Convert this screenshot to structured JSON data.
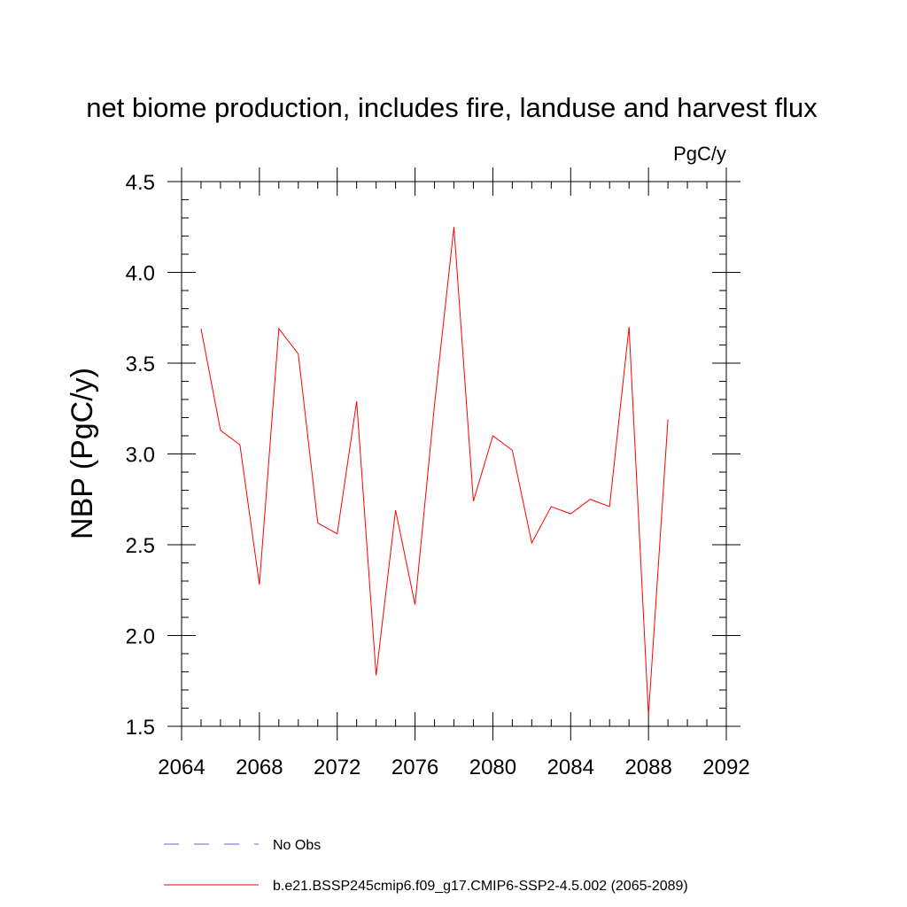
{
  "chart_data": {
    "type": "line",
    "title": "net biome production, includes fire, landuse and harvest flux",
    "units_label": "PgC/y",
    "ylabel": "NBP  (PgC/y)",
    "xlabel": "",
    "xlim": [
      2064,
      2092
    ],
    "ylim": [
      1.5,
      4.5
    ],
    "x_ticks": [
      2064,
      2068,
      2072,
      2076,
      2080,
      2084,
      2088,
      2092
    ],
    "x_tick_labels": [
      "2064",
      "2068",
      "2072",
      "2076",
      "2080",
      "2084",
      "2088",
      "2092"
    ],
    "x_minor_step": 1,
    "y_ticks": [
      1.5,
      2.0,
      2.5,
      3.0,
      3.5,
      4.0,
      4.5
    ],
    "y_tick_labels": [
      "1.5",
      "2.0",
      "2.5",
      "3.0",
      "3.5",
      "4.0",
      "4.5"
    ],
    "y_minor_step": 0.1,
    "grid": false,
    "legend_position": "bottom",
    "x": [
      2065,
      2066,
      2067,
      2068,
      2069,
      2070,
      2071,
      2072,
      2073,
      2074,
      2075,
      2076,
      2077,
      2078,
      2079,
      2080,
      2081,
      2082,
      2083,
      2084,
      2085,
      2086,
      2087,
      2088,
      2089
    ],
    "series": [
      {
        "name": "b.e21.BSSP245cmip6.f09_g17.CMIP6-SSP2-4.5.002 (2065-2089)",
        "color": "#ff0000",
        "dash": "solid",
        "values": [
          3.69,
          3.13,
          3.05,
          2.28,
          3.69,
          3.55,
          2.62,
          2.56,
          3.29,
          1.78,
          2.69,
          2.17,
          3.27,
          4.25,
          2.74,
          3.1,
          3.02,
          2.51,
          2.71,
          2.67,
          2.75,
          2.71,
          3.7,
          1.56,
          3.19
        ]
      }
    ],
    "legend": [
      {
        "label": "No Obs",
        "color": "#6666cc",
        "dash": "dashed"
      },
      {
        "label": "b.e21.BSSP245cmip6.f09_g17.CMIP6-SSP2-4.5.002 (2065-2089)",
        "color": "#ff0000",
        "dash": "solid"
      }
    ]
  }
}
